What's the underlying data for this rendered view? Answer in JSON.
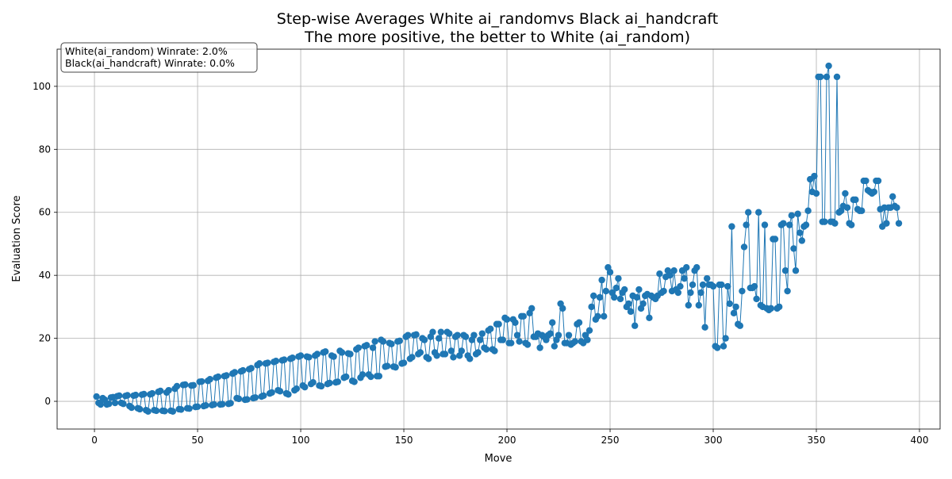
{
  "chart_data": {
    "type": "line",
    "title": "Step-wise Averages White ai_randomvs Black ai_handcraft",
    "subtitle": "The more positive, the better to White (ai_random)",
    "xlabel": "Move",
    "ylabel": "Evaluation Score",
    "annotations": [
      "White(ai_random) Winrate: 2.0%",
      "Black(ai_handcraft) Winrate: 0.0%"
    ],
    "xlim": [
      -18.1,
      410
    ],
    "ylim": [
      -8.8,
      111.8
    ],
    "xticks": [
      0,
      50,
      100,
      150,
      200,
      250,
      300,
      350,
      400
    ],
    "yticks": [
      0,
      20,
      40,
      60,
      80,
      100
    ],
    "grid": true,
    "x": [
      1,
      2,
      3,
      4,
      5,
      6,
      7,
      8,
      9,
      10,
      11,
      12,
      13,
      14,
      15,
      16,
      17,
      18,
      19,
      20,
      21,
      22,
      23,
      24,
      25,
      26,
      27,
      28,
      29,
      30,
      31,
      32,
      33,
      34,
      35,
      36,
      37,
      38,
      39,
      40,
      41,
      42,
      43,
      44,
      45,
      46,
      47,
      48,
      49,
      50,
      51,
      52,
      53,
      54,
      55,
      56,
      57,
      58,
      59,
      60,
      61,
      62,
      63,
      64,
      65,
      66,
      67,
      68,
      69,
      70,
      71,
      72,
      73,
      74,
      75,
      76,
      77,
      78,
      79,
      80,
      81,
      82,
      83,
      84,
      85,
      86,
      87,
      88,
      89,
      90,
      91,
      92,
      93,
      94,
      95,
      96,
      97,
      98,
      99,
      100,
      101,
      102,
      103,
      104,
      105,
      106,
      107,
      108,
      109,
      110,
      111,
      112,
      113,
      114,
      115,
      116,
      117,
      118,
      119,
      120,
      121,
      122,
      123,
      124,
      125,
      126,
      127,
      128,
      129,
      130,
      131,
      132,
      133,
      134,
      135,
      136,
      137,
      138,
      139,
      140,
      141,
      142,
      143,
      144,
      145,
      146,
      147,
      148,
      149,
      150,
      151,
      152,
      153,
      154,
      155,
      156,
      157,
      158,
      159,
      160,
      161,
      162,
      163,
      164,
      165,
      166,
      167,
      168,
      169,
      170,
      171,
      172,
      173,
      174,
      175,
      176,
      177,
      178,
      179,
      180,
      181,
      182,
      183,
      184,
      185,
      186,
      187,
      188,
      189,
      190,
      191,
      192,
      193,
      194,
      195,
      196,
      197,
      198,
      199,
      200,
      201,
      202,
      203,
      204,
      205,
      206,
      207,
      208,
      209,
      210,
      211,
      212,
      213,
      214,
      215,
      216,
      217,
      218,
      219,
      220,
      221,
      222,
      223,
      224,
      225,
      226,
      227,
      228,
      229,
      230,
      231,
      232,
      233,
      234,
      235,
      236,
      237,
      238,
      239,
      240,
      241,
      242,
      243,
      244,
      245,
      246,
      247,
      248,
      249,
      250,
      251,
      252,
      253,
      254,
      255,
      256,
      257,
      258,
      259,
      260,
      261,
      262,
      263,
      264,
      265,
      266,
      267,
      268,
      269,
      270,
      271,
      272,
      273,
      274,
      275,
      276,
      277,
      278,
      279,
      280,
      281,
      282,
      283,
      284,
      285,
      286,
      287,
      288,
      289,
      290,
      291,
      292,
      293,
      294,
      295,
      296,
      297,
      298,
      299,
      300,
      301,
      302,
      303,
      304,
      305,
      306,
      307,
      308,
      309,
      310,
      311,
      312,
      313,
      314,
      315,
      316,
      317,
      318,
      319,
      320,
      321,
      322,
      323,
      324,
      325,
      326,
      327,
      328,
      329,
      330,
      331,
      332,
      333,
      334,
      335,
      336,
      337,
      338,
      339,
      340,
      341,
      342,
      343,
      344,
      345,
      346,
      347,
      348,
      349,
      350,
      351,
      352,
      353,
      354,
      355,
      356,
      357,
      358,
      359,
      360,
      361,
      362,
      363,
      364,
      365,
      366,
      367,
      368,
      369,
      370,
      371,
      372,
      373,
      374,
      375,
      376,
      377,
      378,
      379,
      380,
      381,
      382,
      383,
      384,
      385,
      386,
      387,
      388,
      389,
      390
    ],
    "series": [
      {
        "color": "#1f77b4",
        "values": [
          1.5,
          -0.5,
          -1,
          1,
          0.5,
          -1,
          -0.8,
          1.2,
          1.3,
          -0.5,
          1.6,
          1.8,
          -0.5,
          -0.8,
          1.7,
          1.9,
          -1.5,
          -2,
          1.8,
          2,
          -2.2,
          -2.5,
          2.1,
          2.3,
          -2.8,
          -3.2,
          2.2,
          2.5,
          -2.8,
          -3,
          3,
          3.3,
          -3,
          -3.1,
          2.8,
          3.5,
          -3,
          -3.2,
          4,
          4.8,
          -2.5,
          -2.6,
          5.2,
          5.3,
          -2.2,
          -2.3,
          5,
          5.1,
          -1.8,
          -1.7,
          6.2,
          6.3,
          -1.5,
          -1.3,
          6.5,
          7,
          -1.2,
          -1,
          7.5,
          7.8,
          -1,
          -0.9,
          8,
          8.2,
          -0.8,
          -0.6,
          8.8,
          9.2,
          1,
          0.8,
          9.5,
          9.8,
          0.5,
          0.6,
          10.2,
          10.5,
          1,
          1.2,
          11.5,
          12,
          1.5,
          1.8,
          12,
          12.2,
          2.5,
          2.8,
          12.5,
          12.8,
          3.5,
          3.2,
          13,
          13.2,
          2.5,
          2.2,
          13.5,
          13.8,
          3.5,
          4,
          14.2,
          14.5,
          5,
          4.5,
          14.2,
          14,
          5.5,
          6,
          14.5,
          15,
          5,
          4.8,
          15.5,
          15.8,
          5.5,
          5.8,
          14.5,
          14.2,
          6,
          6.2,
          16,
          15.5,
          7.5,
          7.8,
          15.2,
          15,
          6.5,
          6.2,
          16.5,
          17,
          7.5,
          8.5,
          17.5,
          17.8,
          8.5,
          7.8,
          17,
          19,
          8,
          8,
          19.5,
          19,
          11,
          11.2,
          18.5,
          18.2,
          11,
          10.8,
          19,
          19.2,
          12,
          12.2,
          20.5,
          21,
          13.5,
          14,
          21,
          21.2,
          15,
          15.5,
          20,
          19.5,
          14,
          13.5,
          20.5,
          22,
          15.5,
          14.5,
          20,
          22,
          15,
          15,
          22,
          21.5,
          16,
          14,
          20.5,
          21,
          14.5,
          16,
          21,
          20.5,
          14.5,
          13.5,
          19.5,
          21,
          15,
          15.5,
          19.5,
          21.5,
          17,
          16.5,
          22.5,
          23,
          16.5,
          16,
          24.5,
          24.5,
          19.5,
          19.5,
          26.5,
          26,
          18.5,
          18.5,
          26,
          25,
          21,
          19,
          27,
          27,
          18.5,
          18,
          28,
          29.5,
          20.5,
          20.5,
          21.5,
          17,
          21,
          20.5,
          19.5,
          21,
          21.5,
          25,
          17.5,
          19.5,
          21,
          31,
          29.5,
          18.5,
          18.5,
          21,
          18,
          18.5,
          19,
          24.5,
          25,
          19,
          18.5,
          21,
          19.5,
          22.5,
          30,
          33.5,
          26,
          27,
          33,
          38.5,
          27,
          35,
          42.5,
          41,
          34.5,
          33,
          36,
          39,
          32.5,
          34.5,
          35.5,
          30,
          31,
          28.5,
          33.5,
          24,
          33,
          35.5,
          29.5,
          31,
          33.5,
          34,
          26.5,
          33.5,
          33,
          32.5,
          33.5,
          40.5,
          34.5,
          35,
          39.5,
          41.5,
          40,
          35,
          41.5,
          35.5,
          34.5,
          36.5,
          41.5,
          39,
          42.5,
          30.5,
          34.5,
          37,
          41.5,
          42.5,
          30.5,
          34.5,
          37,
          23.5,
          39,
          37,
          37,
          36.5,
          17.5,
          17,
          37,
          37,
          17.5,
          20,
          36.5,
          31,
          55.5,
          28,
          30,
          24.5,
          24,
          35,
          49,
          56,
          60,
          36,
          36,
          36.5,
          32.5,
          60,
          30.5,
          30,
          56,
          29.5,
          29,
          29.5,
          51.5,
          51.5,
          29.5,
          30,
          56,
          56.5,
          41.5,
          35,
          56,
          59,
          48.5,
          41.5,
          59.5,
          53.5,
          51,
          55.5,
          56,
          60.5,
          70.5,
          66.5,
          71.5,
          66,
          103,
          103,
          57,
          57,
          103,
          106.5,
          57,
          57,
          56.5,
          103,
          60,
          60.5,
          62,
          66,
          61.5,
          56.5,
          56,
          64,
          64,
          61,
          60.5,
          60.5,
          70,
          70,
          67,
          66.5,
          66,
          66.5,
          70,
          70,
          61,
          55.5,
          61.5,
          56.5,
          61.5,
          61.5,
          65,
          62,
          61.5,
          56.5
        ]
      }
    ]
  }
}
